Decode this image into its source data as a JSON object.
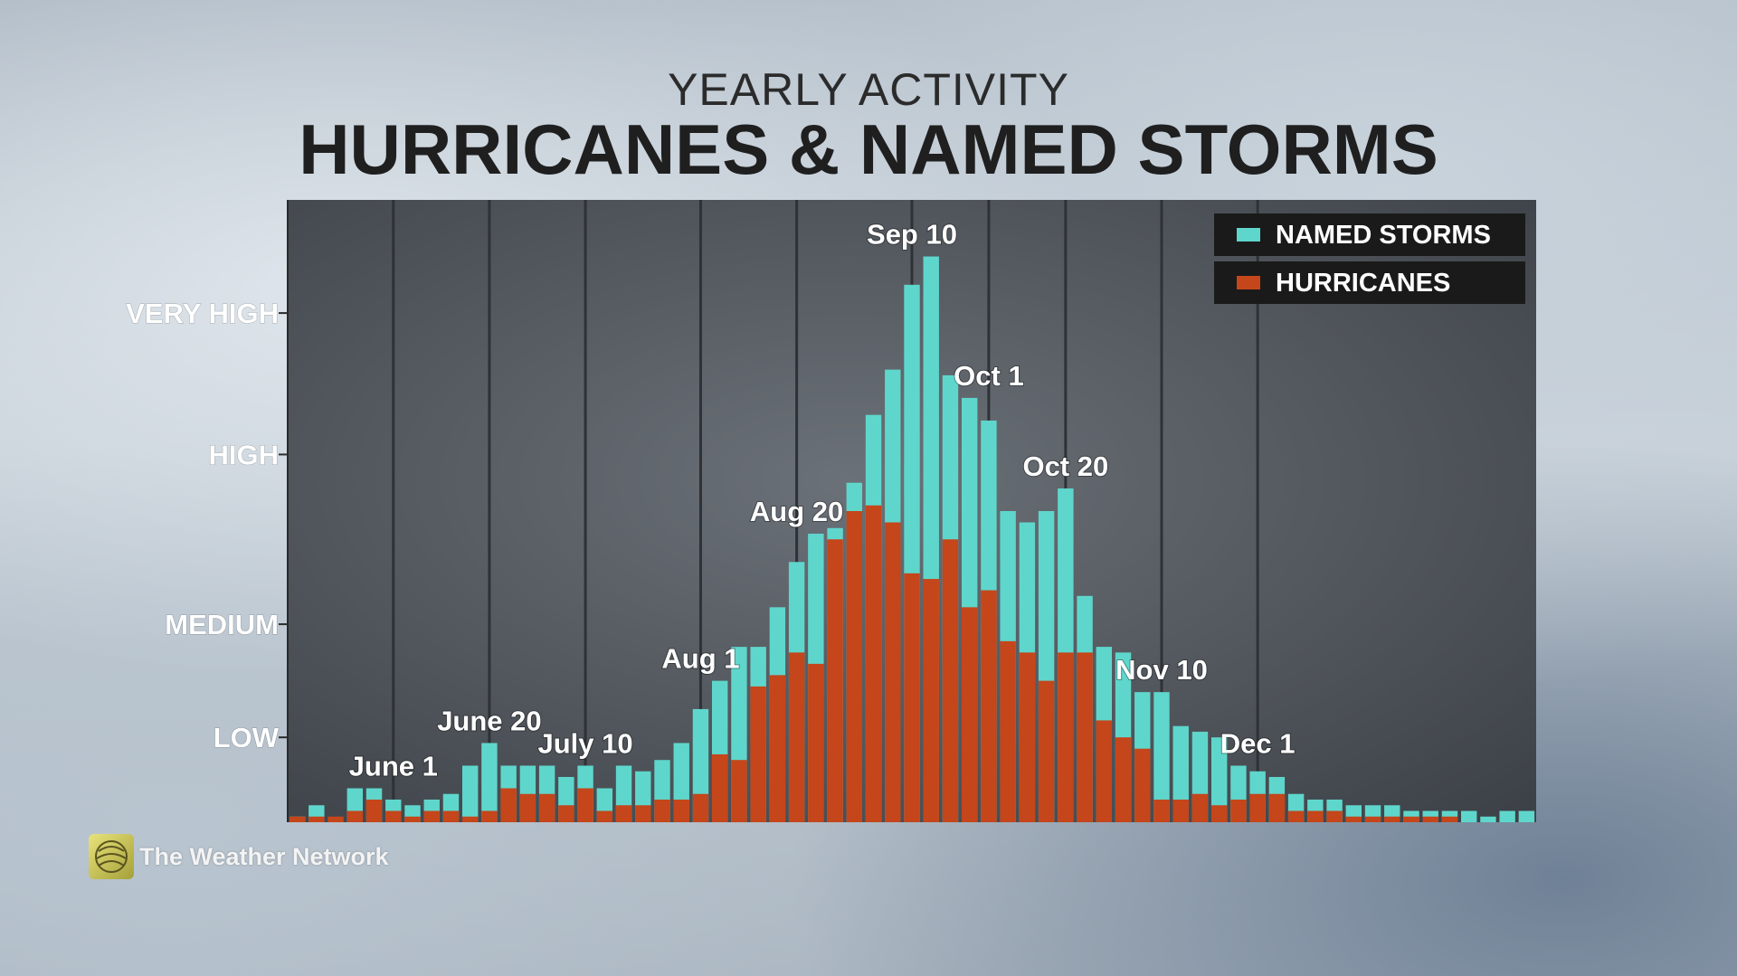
{
  "header": {
    "subtitle": "YEARLY ACTIVITY",
    "title": "HURRICANES & NAMED STORMS"
  },
  "branding": {
    "logo_text": "The Weather Network",
    "logo_icon": "globe-icon"
  },
  "colors": {
    "named_storms": "#5fd6cc",
    "hurricanes": "#c4461a",
    "plot_background": "#555a60",
    "legend_background": "#1a1a1a"
  },
  "chart_data": {
    "type": "bar",
    "title": "HURRICANES & NAMED STORMS",
    "subtitle": "YEARLY ACTIVITY",
    "xlabel": "",
    "ylabel": "",
    "y_tick_labels": [
      {
        "label": "LOW",
        "value": 15
      },
      {
        "label": "MEDIUM",
        "value": 35
      },
      {
        "label": "HIGH",
        "value": 65
      },
      {
        "label": "VERY HIGH",
        "value": 90
      }
    ],
    "ylim": [
      0,
      110
    ],
    "grid": "vertical",
    "legend_position": "top-right",
    "series": [
      {
        "name": "NAMED STORMS",
        "values": [
          1,
          3,
          0,
          6,
          6,
          4,
          3,
          4,
          5,
          10,
          14,
          10,
          10,
          10,
          8,
          10,
          6,
          10,
          9,
          11,
          14,
          20,
          25,
          31,
          31,
          38,
          46,
          51,
          52,
          60,
          72,
          80,
          95,
          100,
          79,
          75,
          71,
          55,
          53,
          55,
          59,
          40,
          31,
          30,
          23,
          23,
          17,
          16,
          15,
          10,
          9,
          8,
          5,
          4,
          4,
          3,
          3,
          3,
          2,
          2,
          2,
          2,
          1,
          2,
          2
        ]
      },
      {
        "name": "HURRICANES",
        "values": [
          1,
          1,
          1,
          2,
          4,
          2,
          1,
          2,
          2,
          1,
          2,
          6,
          5,
          5,
          3,
          6,
          2,
          3,
          3,
          4,
          4,
          5,
          12,
          11,
          24,
          26,
          30,
          28,
          50,
          55,
          56,
          53,
          44,
          43,
          50,
          38,
          41,
          32,
          30,
          25,
          30,
          30,
          18,
          15,
          13,
          4,
          4,
          5,
          3,
          4,
          5,
          5,
          2,
          2,
          2,
          1,
          1,
          1,
          1,
          1,
          1,
          0,
          0,
          0,
          0
        ]
      }
    ],
    "annotations": [
      {
        "label": "June 1",
        "index": 5
      },
      {
        "label": "June 20",
        "index": 10
      },
      {
        "label": "July 10",
        "index": 15
      },
      {
        "label": "Aug 1",
        "index": 21
      },
      {
        "label": "Aug 20",
        "index": 26
      },
      {
        "label": "Sep 10",
        "index": 32
      },
      {
        "label": "Oct 1",
        "index": 36
      },
      {
        "label": "Oct 20",
        "index": 40
      },
      {
        "label": "Nov 10",
        "index": 45
      },
      {
        "label": "Dec 1",
        "index": 50
      }
    ]
  }
}
